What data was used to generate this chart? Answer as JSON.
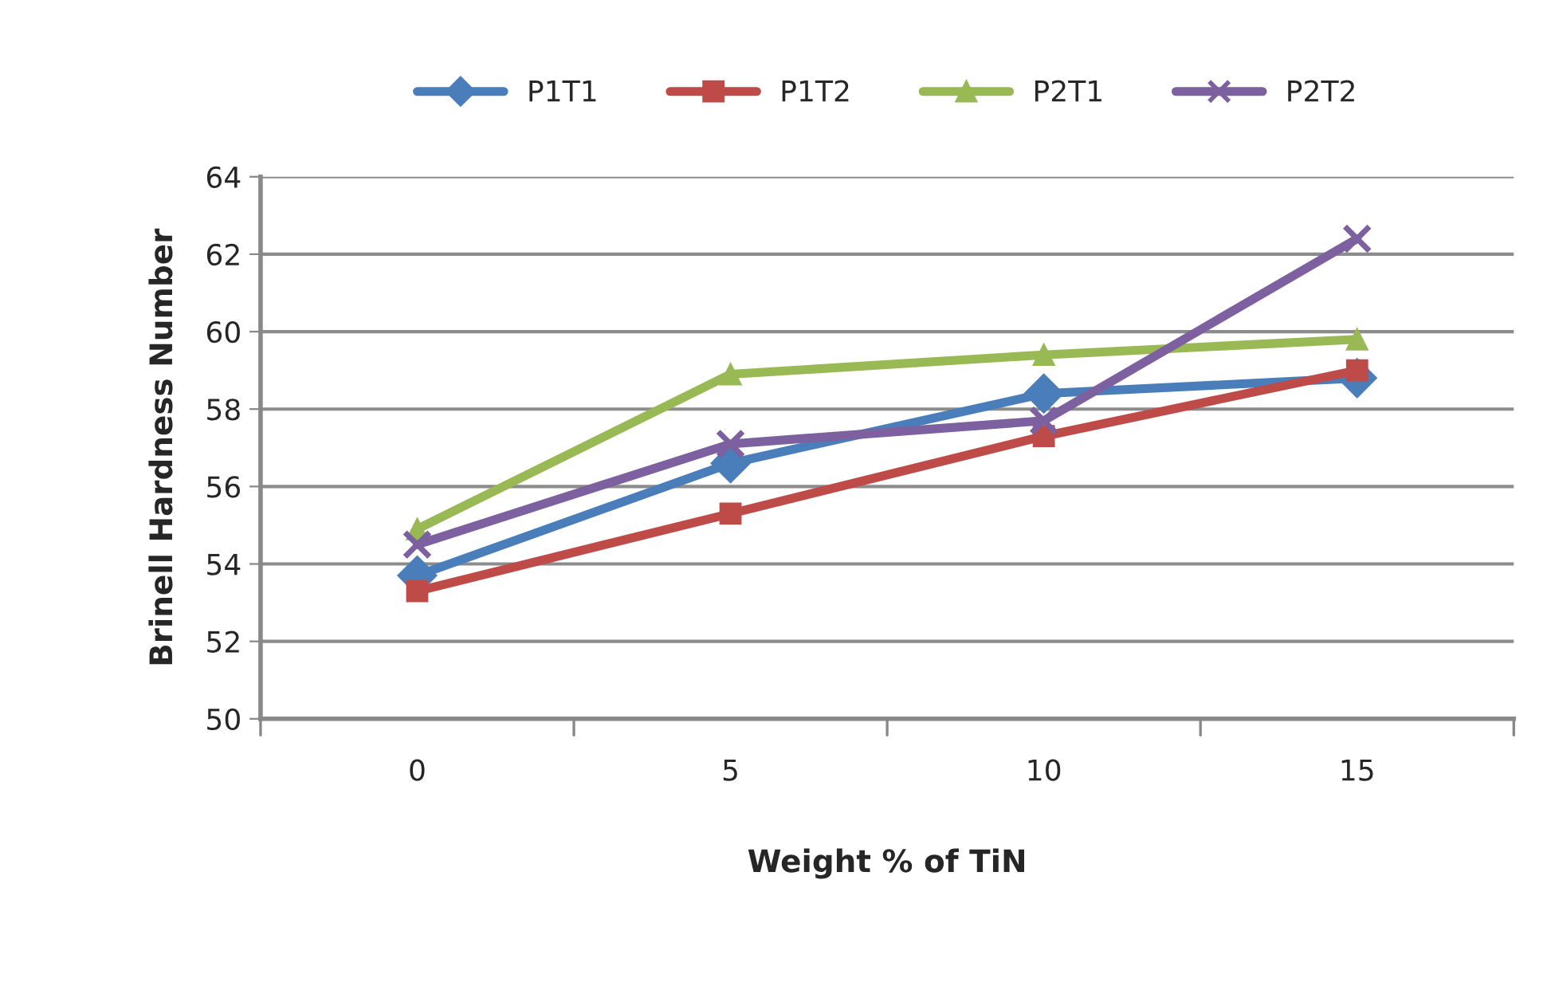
{
  "chart_data": {
    "type": "line",
    "xlabel": "Weight % of TiN",
    "ylabel": "Brinell Hardness Number",
    "categories": [
      "0",
      "5",
      "10",
      "15"
    ],
    "series": [
      {
        "name": "P1T1",
        "color": "#4a7ebb",
        "marker": "diamond",
        "values": [
          53.7,
          56.6,
          58.4,
          58.8
        ]
      },
      {
        "name": "P1T2",
        "color": "#be4b48",
        "marker": "square",
        "values": [
          53.3,
          55.3,
          57.3,
          59.0
        ]
      },
      {
        "name": "P2T1",
        "color": "#98b954",
        "marker": "triangle",
        "values": [
          54.9,
          58.9,
          59.4,
          59.8
        ]
      },
      {
        "name": "P2T2",
        "color": "#7d60a0",
        "marker": "cross",
        "values": [
          54.5,
          57.1,
          57.7,
          62.4
        ]
      }
    ],
    "ylim": [
      50,
      64
    ],
    "yticks": [
      50,
      52,
      54,
      56,
      58,
      60,
      62,
      64
    ],
    "grid": "y",
    "legend": "top",
    "line_style": "solid"
  }
}
